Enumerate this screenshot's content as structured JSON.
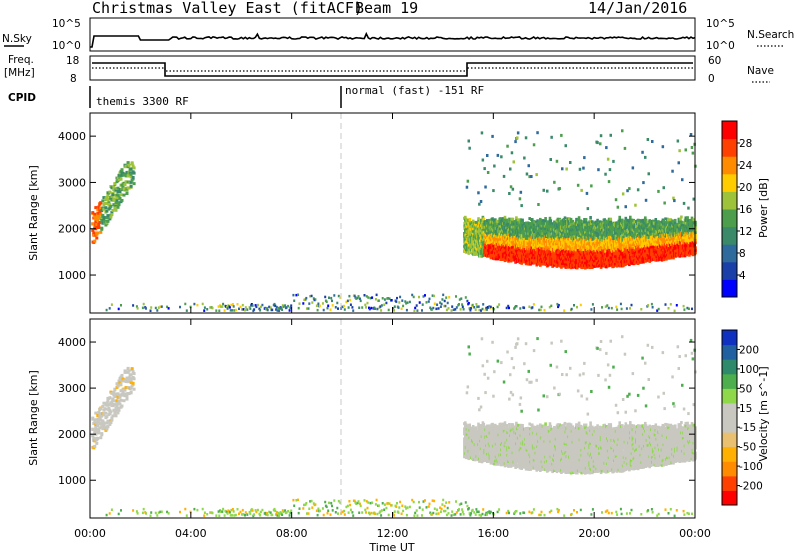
{
  "header": {
    "title": "Christmas Valley East (fitACF)",
    "beam": "Beam 19",
    "date": "14/Jan/2016"
  },
  "top_panels": {
    "nsky_label": "N.Sky",
    "nsky_ticks": [
      "10^5",
      "10^0"
    ],
    "nsearch_label": "N.Search",
    "nsearch_ticks": [
      "10^5",
      "10^0"
    ],
    "freq_label_1": "Freq.",
    "freq_label_2": "[MHz]",
    "freq_ticks": [
      "18",
      "8"
    ],
    "nave_label": "Nave",
    "nave_ticks": [
      "60",
      "0"
    ],
    "cpid_label": "CPID",
    "modes": [
      {
        "label": "themis 3300 RF",
        "start": 0
      },
      {
        "label": "normal (fast) -151 RF",
        "start": 10
      }
    ]
  },
  "colorbars": {
    "power": {
      "label": "Power [dB]",
      "ticks": [
        "28",
        "24",
        "20",
        "16",
        "12",
        "8",
        "4"
      ],
      "colors": [
        "#0000ff",
        "#1a3fa8",
        "#2e6a9c",
        "#3a8a6a",
        "#4c9e4c",
        "#9ec23a",
        "#ffcc00",
        "#ff8c00",
        "#ff4000",
        "#ff0000"
      ]
    },
    "velocity": {
      "label": "Velocity [m s^-1]",
      "ticks": [
        "200",
        "100",
        "50",
        "15",
        "-15",
        "-50",
        "-100",
        "-200"
      ],
      "colors": [
        "#ff0000",
        "#ff4000",
        "#ff8c00",
        "#ffb000",
        "#e8c070",
        "#c8c8c0",
        "#c8c8c0",
        "#8fd84a",
        "#4cae4c",
        "#2e8a6a",
        "#2060a0",
        "#1030c0"
      ]
    }
  },
  "chart_data": [
    {
      "type": "heatmap",
      "panel": "power",
      "ylabel": "Slant Range [km]",
      "xlabel": "",
      "x_range": [
        0,
        24
      ],
      "ylim": [
        180,
        4500
      ],
      "yticks": [
        "1000",
        "2000",
        "3000",
        "4000"
      ],
      "color_range": [
        0,
        30
      ],
      "regions": [
        {
          "t_start": 0.0,
          "t_end": 1.6,
          "r_low": 1700,
          "r_high": 3400,
          "level": 14
        },
        {
          "t_start": 14.8,
          "t_end": 24.0,
          "r_low": 1300,
          "r_high": 2200,
          "level": 26
        },
        {
          "t_start": 15.0,
          "t_end": 17.0,
          "r_low": 2800,
          "r_high": 4000,
          "level": 8
        },
        {
          "t_start": 1.0,
          "t_end": 16.0,
          "r_low": 180,
          "r_high": 450,
          "level": 10
        }
      ]
    },
    {
      "type": "heatmap",
      "panel": "velocity",
      "ylabel": "Slant Range [km]",
      "xlabel": "Time UT",
      "x_range": [
        0,
        24
      ],
      "ylim": [
        180,
        4500
      ],
      "yticks": [
        "1000",
        "2000",
        "3000",
        "4000"
      ],
      "xticks": [
        "00:00",
        "04:00",
        "08:00",
        "12:00",
        "16:00",
        "20:00",
        "00:00"
      ],
      "color_range": [
        -200,
        200
      ]
    }
  ]
}
